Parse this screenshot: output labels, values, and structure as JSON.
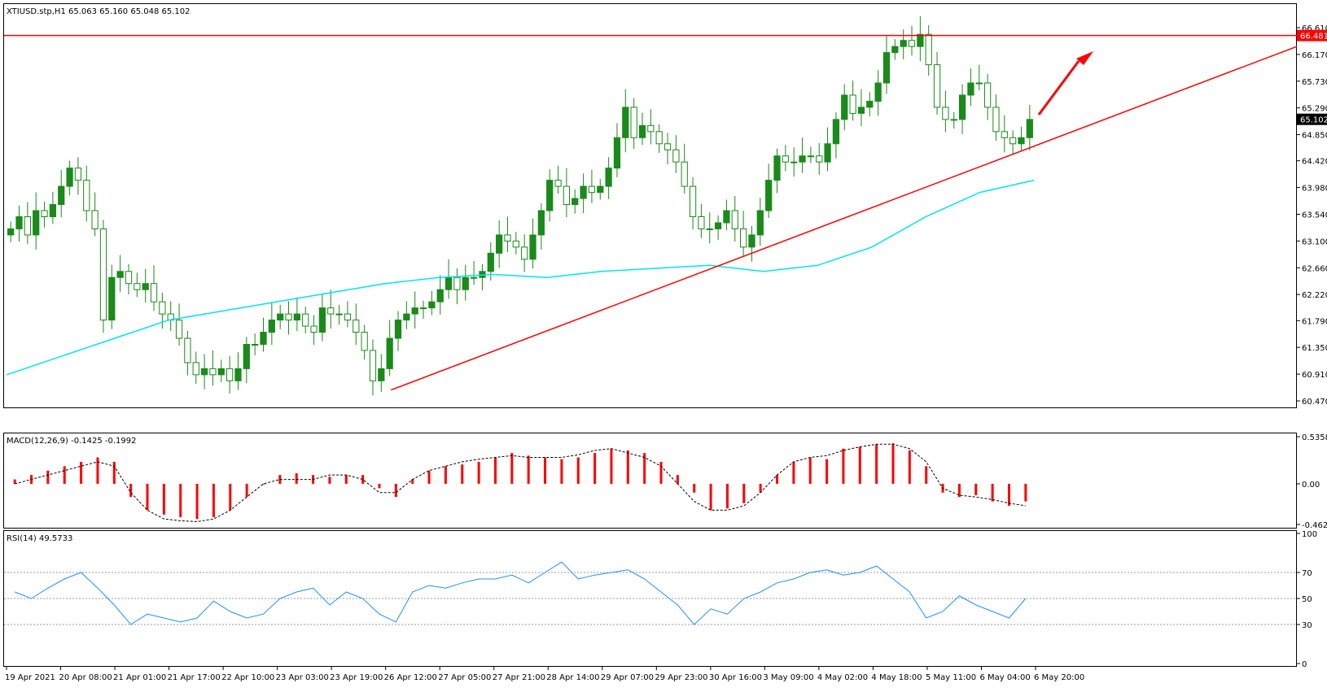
{
  "chart_data": [
    {
      "type": "candlestick",
      "title": "XTIUSD.stp,H1  65.063 65.160 65.048 65.102",
      "symbol": "XTIUSD.stp",
      "timeframe": "H1",
      "ohlc_header": {
        "open": 65.063,
        "high": 65.16,
        "low": 65.048,
        "close": 65.102
      },
      "ylim": [
        60.47,
        66.61
      ],
      "y_ticks": [
        "66.610",
        "66.170",
        "65.730",
        "65.290",
        "64.850",
        "64.420",
        "63.980",
        "63.540",
        "63.100",
        "62.660",
        "62.220",
        "61.790",
        "61.350",
        "60.910",
        "60.470"
      ],
      "x_labels": [
        "19 Apr 2021",
        "20 Apr 08:00",
        "21 Apr 01:00",
        "21 Apr 17:00",
        "22 Apr 10:00",
        "23 Apr 03:00",
        "23 Apr 19:00",
        "26 Apr 12:00",
        "27 Apr 05:00",
        "27 Apr 21:00",
        "28 Apr 14:00",
        "29 Apr 07:00",
        "29 Apr 23:00",
        "30 Apr 16:00",
        "3 May 09:00",
        "4 May 02:00",
        "4 May 18:00",
        "5 May 11:00",
        "6 May 04:00",
        "6 May 20:00"
      ],
      "series_close_path": [
        63.3,
        63.5,
        63.2,
        63.6,
        63.5,
        63.7,
        64.0,
        64.3,
        64.1,
        63.6,
        63.3,
        61.8,
        62.5,
        62.6,
        62.4,
        62.3,
        62.4,
        62.1,
        61.9,
        61.8,
        61.5,
        61.1,
        60.9,
        61.0,
        60.9,
        61.0,
        60.8,
        61.0,
        61.4,
        61.4,
        61.6,
        61.8,
        61.9,
        61.8,
        61.9,
        61.7,
        61.6,
        62.0,
        61.9,
        61.9,
        61.8,
        61.6,
        61.3,
        60.8,
        61.0,
        61.5,
        61.8,
        61.9,
        62.0,
        62.0,
        62.1,
        62.3,
        62.5,
        62.3,
        62.5,
        62.5,
        62.6,
        62.9,
        63.2,
        63.1,
        63.0,
        62.8,
        63.2,
        63.6,
        64.1,
        64.0,
        63.7,
        63.8,
        64.0,
        63.9,
        64.0,
        64.3,
        64.8,
        65.3,
        64.8,
        65.0,
        64.9,
        64.7,
        64.6,
        64.4,
        64.0,
        63.5,
        63.3,
        63.3,
        63.4,
        63.6,
        63.3,
        63.0,
        63.2,
        63.6,
        64.1,
        64.5,
        64.4,
        64.4,
        64.5,
        64.5,
        64.4,
        64.7,
        65.1,
        65.5,
        65.2,
        65.3,
        65.4,
        65.7,
        66.2,
        66.3,
        66.4,
        66.3,
        66.5,
        66.0,
        65.3,
        65.1,
        65.1,
        65.5,
        65.7,
        65.7,
        65.3,
        64.9,
        64.8,
        64.7,
        64.8,
        65.1
      ],
      "horizontal_line": {
        "value": 66.481,
        "label": "66.481",
        "color": "#ff0000"
      },
      "price_tag": {
        "value": 65.102,
        "label": "65.102"
      },
      "moving_average": {
        "color": "#00e5ee",
        "values": [
          60.9,
          61.2,
          61.5,
          61.8,
          61.95,
          62.1,
          62.25,
          62.4,
          62.5,
          62.55,
          62.5,
          62.6,
          62.65,
          62.7,
          62.6,
          62.7,
          63.0,
          63.5,
          63.9,
          64.1
        ]
      },
      "trendline": {
        "start": {
          "x_index": 7.1,
          "value": 60.65
        },
        "end": {
          "x_index": 25.0,
          "value": 66.3
        },
        "color": "#ff0000"
      },
      "arrow": {
        "color": "#ff0000"
      },
      "grid": false
    },
    {
      "type": "bar",
      "title": "MACD(12,26,9) -0.1425 -0.1992",
      "ylim": [
        -0.4625,
        0.5358
      ],
      "y_ticks": [
        "0.5358",
        "0.00",
        "-0.4625"
      ],
      "values": [
        0.05,
        0.1,
        0.15,
        0.2,
        0.25,
        0.3,
        0.25,
        -0.15,
        -0.3,
        -0.35,
        -0.38,
        -0.4,
        -0.38,
        -0.3,
        -0.15,
        0.0,
        0.1,
        0.12,
        0.1,
        0.08,
        0.1,
        0.1,
        -0.05,
        -0.15,
        0.05,
        0.15,
        0.2,
        0.22,
        0.25,
        0.3,
        0.35,
        0.32,
        0.3,
        0.28,
        0.3,
        0.35,
        0.4,
        0.38,
        0.35,
        0.25,
        0.1,
        -0.1,
        -0.3,
        -0.28,
        -0.22,
        -0.1,
        0.1,
        0.25,
        0.3,
        0.28,
        0.4,
        0.42,
        0.45,
        0.46,
        0.38,
        0.2,
        -0.1,
        -0.15,
        -0.13,
        -0.2,
        -0.25,
        -0.2
      ],
      "signal_values": [
        0.0,
        0.05,
        0.1,
        0.15,
        0.2,
        0.25,
        0.2,
        -0.1,
        -0.3,
        -0.4,
        -0.42,
        -0.43,
        -0.4,
        -0.3,
        -0.15,
        0.0,
        0.05,
        0.05,
        0.05,
        0.1,
        0.1,
        0.05,
        -0.1,
        -0.1,
        0.05,
        0.15,
        0.2,
        0.25,
        0.28,
        0.3,
        0.32,
        0.3,
        0.3,
        0.3,
        0.33,
        0.38,
        0.4,
        0.35,
        0.3,
        0.2,
        0.0,
        -0.2,
        -0.3,
        -0.3,
        -0.25,
        -0.1,
        0.1,
        0.25,
        0.3,
        0.32,
        0.38,
        0.42,
        0.45,
        0.45,
        0.4,
        0.25,
        -0.05,
        -0.13,
        -0.15,
        -0.18,
        -0.22,
        -0.25
      ],
      "color": "#ff0000"
    },
    {
      "type": "line",
      "title": "RSI(14) 49.5733",
      "ylim": [
        0,
        100
      ],
      "y_ticks": [
        "100",
        "70",
        "50",
        "30",
        "0"
      ],
      "levels": [
        70,
        50,
        30
      ],
      "values": [
        55,
        50,
        58,
        65,
        70,
        58,
        45,
        30,
        38,
        35,
        32,
        35,
        48,
        40,
        35,
        38,
        50,
        55,
        58,
        45,
        55,
        50,
        38,
        32,
        55,
        60,
        58,
        62,
        65,
        65,
        68,
        62,
        70,
        78,
        65,
        68,
        70,
        72,
        65,
        55,
        45,
        30,
        42,
        38,
        50,
        55,
        62,
        65,
        70,
        72,
        68,
        70,
        75,
        65,
        55,
        35,
        40,
        52,
        45,
        40,
        35,
        50
      ],
      "color": "#1e90ff"
    }
  ]
}
